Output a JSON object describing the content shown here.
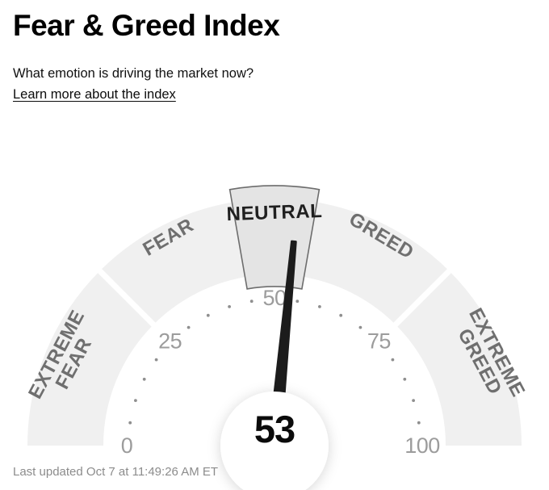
{
  "page": {
    "title": "Fear & Greed Index",
    "subtitle": "What emotion is driving the market now?",
    "link_label": "Learn more about the index",
    "footer": "Last updated Oct 7 at 11:49:26 AM ET"
  },
  "chart_data": {
    "type": "gauge",
    "title": "Fear & Greed Index",
    "value": 53,
    "value_label": "53",
    "min": 0,
    "max": 100,
    "tick_labels": [
      0,
      25,
      50,
      75,
      100
    ],
    "minor_tick_step": 5,
    "segments": [
      {
        "label": "EXTREME FEAR",
        "label_lines": [
          "EXTREME",
          "FEAR"
        ],
        "from": 0,
        "to": 25,
        "highlighted": false
      },
      {
        "label": "FEAR",
        "label_lines": [
          "FEAR"
        ],
        "from": 25,
        "to": 45,
        "highlighted": false
      },
      {
        "label": "NEUTRAL",
        "label_lines": [
          "NEUTRAL"
        ],
        "from": 45,
        "to": 55,
        "highlighted": true
      },
      {
        "label": "GREED",
        "label_lines": [
          "GREED"
        ],
        "from": 55,
        "to": 75,
        "highlighted": false
      },
      {
        "label": "EXTREME GREED",
        "label_lines": [
          "EXTREME",
          "GREED"
        ],
        "from": 75,
        "to": 100,
        "highlighted": false
      }
    ],
    "colors": {
      "segment_fill": "#f0f0f0",
      "highlight_fill": "#e4e4e4",
      "highlight_stroke": "#6d6d6d",
      "segment_label": "#6f6f6f",
      "highlight_label": "#1f1f1f",
      "tick_label": "#9c9c9c",
      "dot": "#8f8f8f",
      "needle": "#1c1c1c",
      "value_text": "#0b0b0b",
      "gap": "#ffffff"
    }
  }
}
